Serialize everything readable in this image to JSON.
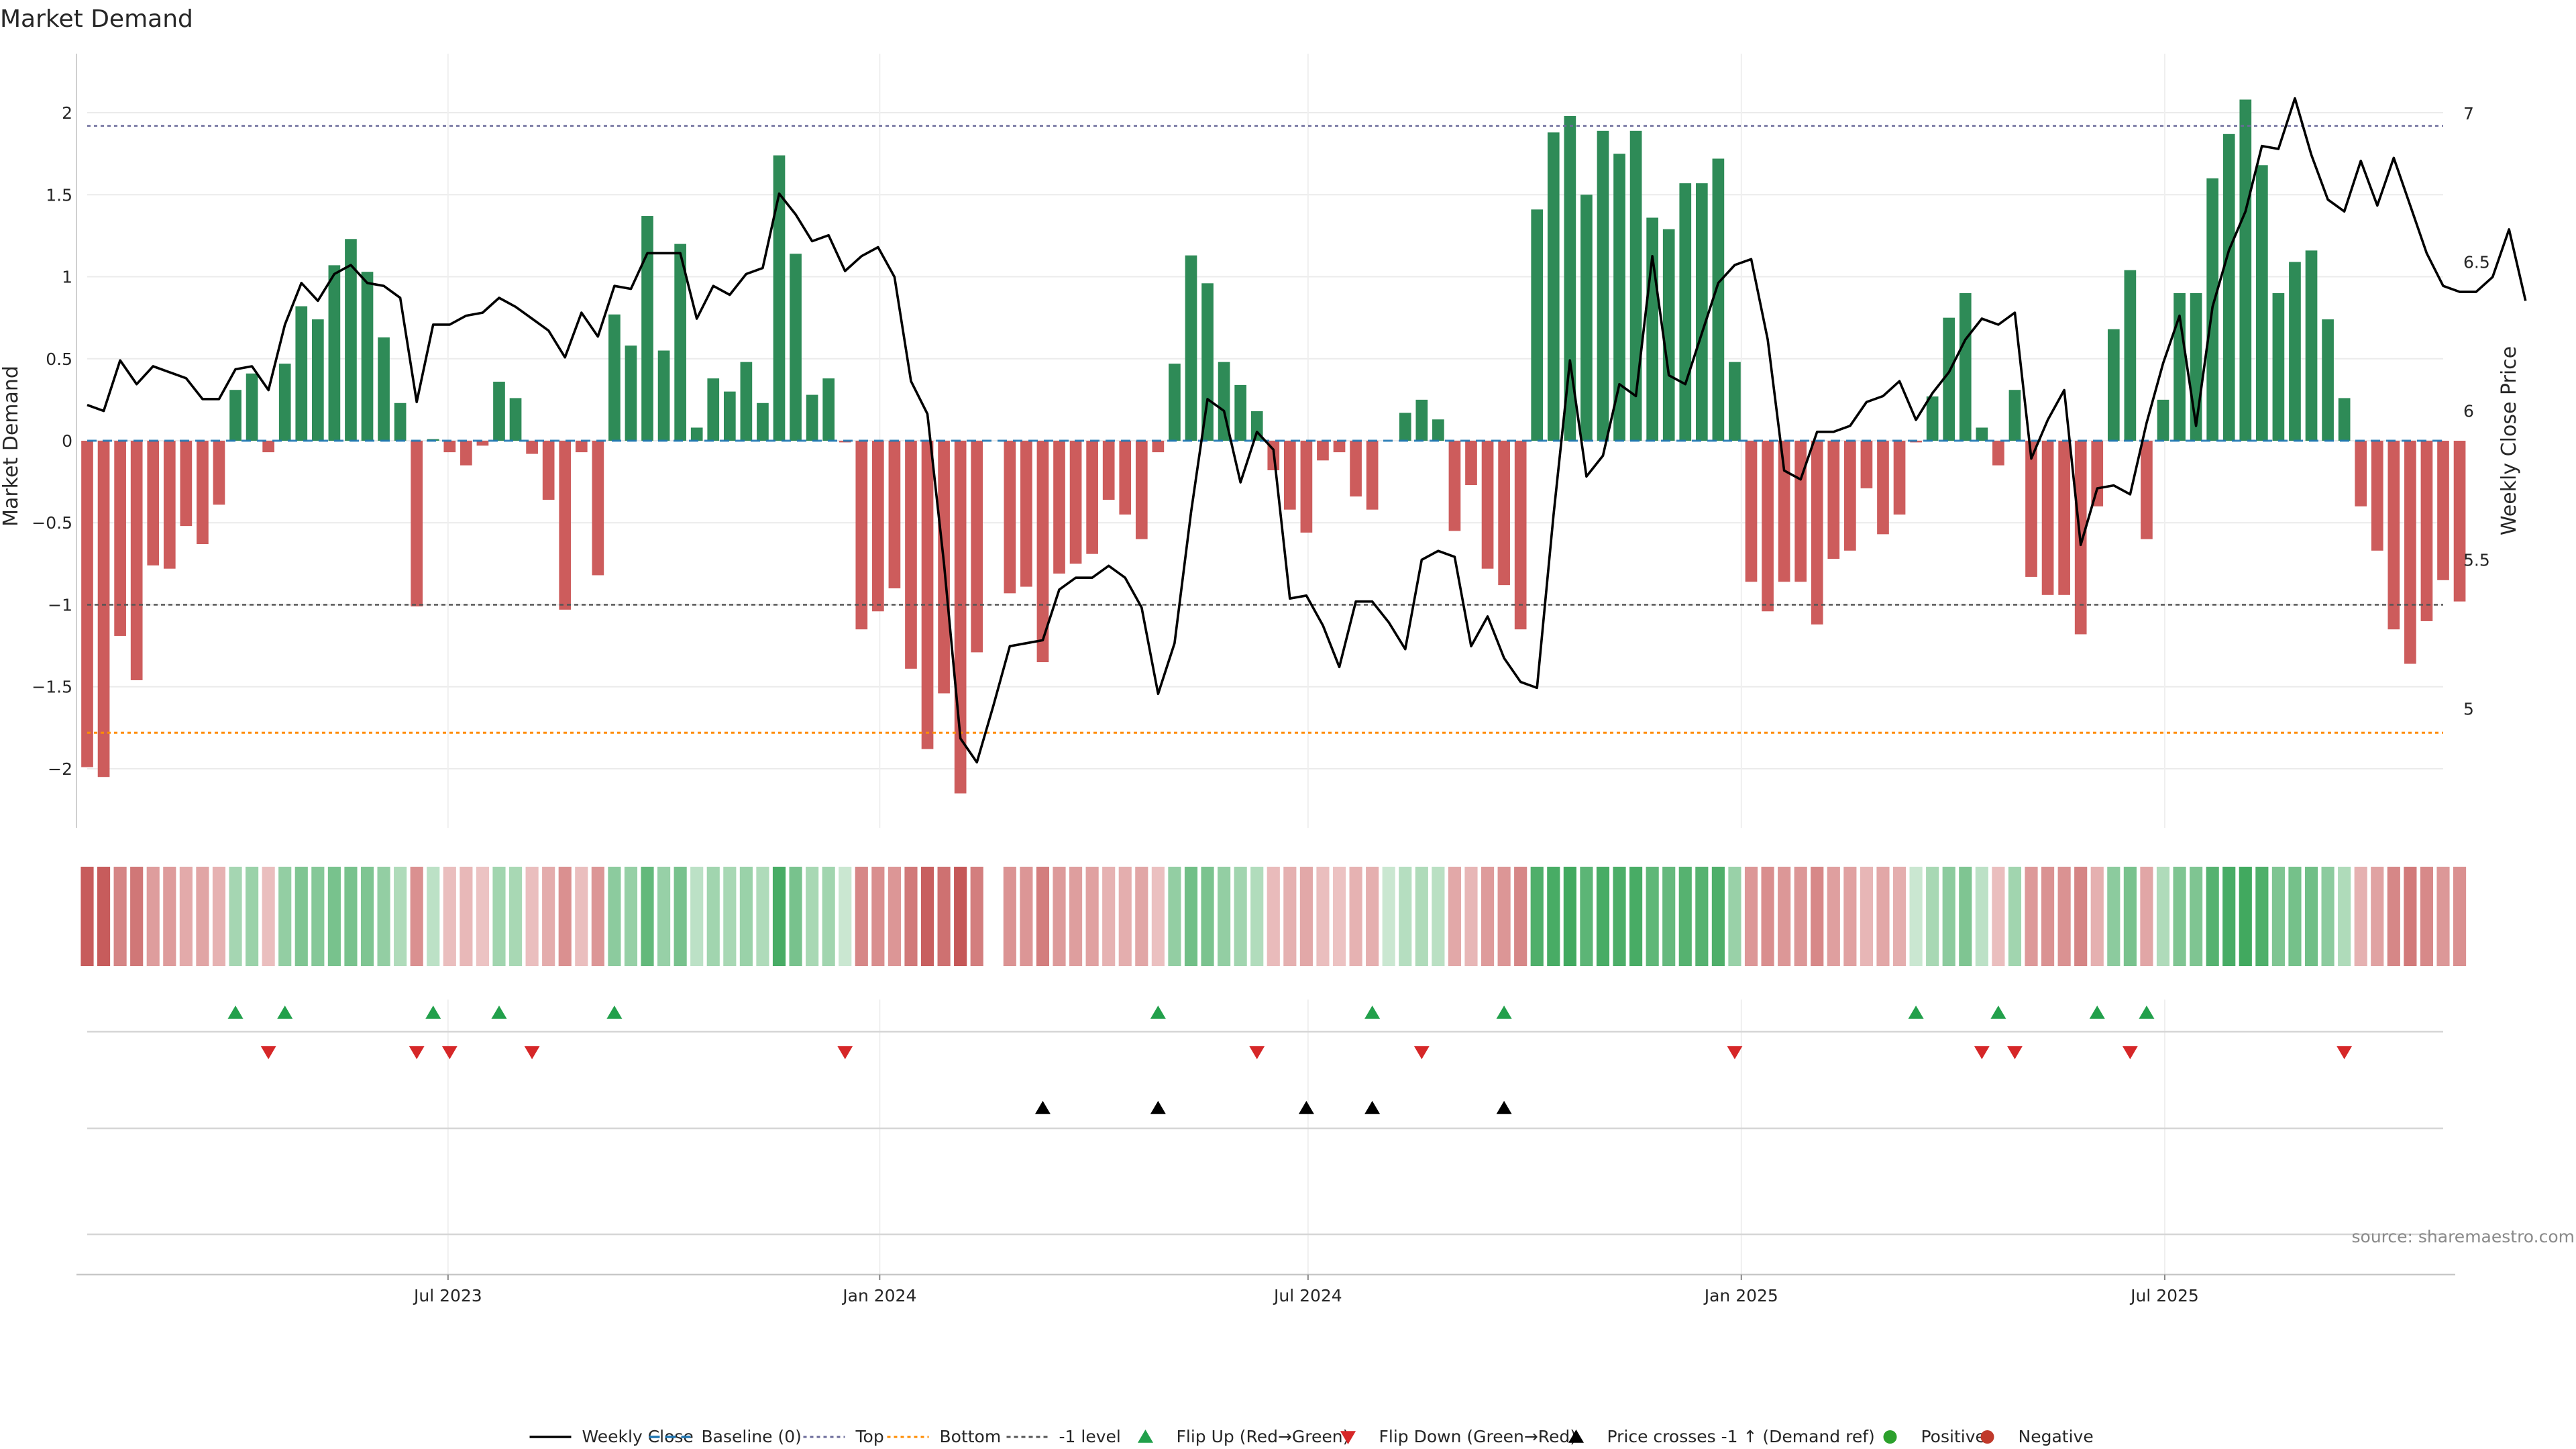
{
  "chart_data": {
    "type": "bar",
    "title": "Market Demand",
    "ylabel": "Market Demand",
    "y2label": "Weekly Close Price",
    "ylim": [
      -2.36,
      2.36
    ],
    "y2lim": [
      4.6,
      7.2
    ],
    "yticks": [
      -2,
      -1.5,
      -1,
      -0.5,
      0,
      0.5,
      1,
      1.5,
      2
    ],
    "ytick_labels": [
      "−2",
      "−1.5",
      "−1",
      "−0.5",
      "0",
      "0.5",
      "1",
      "1.5",
      "2"
    ],
    "y2ticks": [
      5,
      5.5,
      6,
      6.5,
      7
    ],
    "y2tick_labels": [
      "5",
      "5.5",
      "6",
      "6.5",
      "7"
    ],
    "xlim_week": [
      0,
      143
    ],
    "xticks": [
      {
        "week": 21.9,
        "label": "Jul 2023"
      },
      {
        "week": 48.1,
        "label": "Jan 2024"
      },
      {
        "week": 74.1,
        "label": "Jul 2024"
      },
      {
        "week": 100.4,
        "label": "Jan 2025"
      },
      {
        "week": 126.1,
        "label": "Jul 2025"
      }
    ],
    "levels": {
      "top": 1.92,
      "bottom": -1.78,
      "minus_one": -1,
      "baseline": 0
    },
    "demand": [
      -1.99,
      -2.05,
      -1.19,
      -1.46,
      -0.76,
      -0.78,
      -0.52,
      -0.63,
      -0.39,
      0.31,
      0.41,
      -0.07,
      0.47,
      0.82,
      0.74,
      1.07,
      1.23,
      1.03,
      0.63,
      0.23,
      -1.01,
      0.01,
      -0.07,
      -0.15,
      -0.03,
      0.36,
      0.26,
      -0.08,
      -0.36,
      -1.03,
      -0.07,
      -0.82,
      0.77,
      0.58,
      1.37,
      0.55,
      1.2,
      0.08,
      0.38,
      0.3,
      0.48,
      0.23,
      1.74,
      1.14,
      0.28,
      0.38,
      -0.01,
      -1.15,
      -1.04,
      -0.9,
      -1.39,
      -1.88,
      -1.54,
      -2.15,
      -1.29,
      0,
      -0.93,
      -0.89,
      -1.35,
      -0.81,
      -0.75,
      -0.69,
      -0.36,
      -0.45,
      -0.6,
      -0.07,
      0.47,
      1.13,
      0.96,
      0.48,
      0.34,
      0.18,
      -0.18,
      -0.42,
      -0.56,
      -0.12,
      -0.07,
      -0.34,
      -0.42,
      0,
      0.17,
      0.25,
      0.13,
      -0.55,
      -0.27,
      -0.78,
      -0.88,
      -1.15,
      1.41,
      1.88,
      1.98,
      1.5,
      1.89,
      1.75,
      1.89,
      1.36,
      1.29,
      1.57,
      1.57,
      1.72,
      0.48,
      -0.86,
      -1.04,
      -0.86,
      -0.86,
      -1.12,
      -0.72,
      -0.67,
      -0.29,
      -0.57,
      -0.45,
      -0.01,
      0.27,
      0.75,
      0.9,
      0.08,
      -0.15,
      0.31,
      -0.83,
      -0.94,
      -0.94,
      -1.18,
      -0.4,
      0.68,
      1.04,
      -0.6,
      0.25,
      0.9,
      0.9,
      1.6,
      1.87,
      2.08,
      1.68,
      0.9,
      1.09,
      1.16,
      0.74,
      0.26,
      -0.4,
      -0.67,
      -1.15,
      -1.36,
      -1.1,
      -0.85,
      -0.98
    ],
    "weekly_close": [
      6.02,
      6.0,
      6.17,
      6.09,
      6.15,
      6.13,
      6.11,
      6.04,
      6.04,
      6.14,
      6.15,
      6.07,
      6.29,
      6.43,
      6.37,
      6.46,
      6.49,
      6.43,
      6.42,
      6.38,
      6.03,
      6.29,
      6.29,
      6.32,
      6.33,
      6.38,
      6.35,
      6.31,
      6.27,
      6.18,
      6.33,
      6.25,
      6.42,
      6.41,
      6.53,
      6.53,
      6.53,
      6.31,
      6.42,
      6.39,
      6.46,
      6.48,
      6.73,
      6.66,
      6.57,
      6.59,
      6.47,
      6.52,
      6.55,
      6.45,
      6.1,
      5.99,
      5.49,
      4.9,
      4.82,
      5.01,
      5.21,
      5.22,
      5.23,
      5.4,
      5.44,
      5.44,
      5.48,
      5.44,
      5.34,
      5.05,
      5.22,
      5.66,
      6.04,
      6.0,
      5.76,
      5.93,
      5.87,
      5.37,
      5.38,
      5.28,
      5.14,
      5.36,
      5.36,
      5.29,
      5.2,
      5.5,
      5.53,
      5.51,
      5.21,
      5.31,
      5.17,
      5.09,
      5.07,
      5.65,
      6.17,
      5.78,
      5.85,
      6.09,
      6.05,
      6.52,
      6.12,
      6.09,
      6.26,
      6.43,
      6.49,
      6.51,
      6.24,
      5.8,
      5.77,
      5.93,
      5.93,
      5.95,
      6.03,
      6.05,
      6.1,
      5.97,
      6.06,
      6.13,
      6.24,
      6.31,
      6.29,
      6.33,
      5.84,
      5.97,
      6.07,
      5.55,
      5.74,
      5.75,
      5.72,
      5.96,
      6.16,
      6.32,
      5.95,
      6.35,
      6.54,
      6.67,
      6.89,
      6.88,
      7.05,
      6.86,
      6.71,
      6.67,
      6.84,
      6.69,
      6.85,
      6.69,
      6.53,
      6.42,
      6.4,
      6.4,
      6.45,
      6.61,
      6.37
    ],
    "strip_shade": [
      -0.96,
      -0.96,
      -0.6,
      -0.72,
      -0.39,
      -0.4,
      -0.27,
      -0.32,
      -0.2,
      0.27,
      0.35,
      -0.1,
      0.4,
      0.55,
      0.5,
      0.6,
      0.6,
      0.55,
      0.4,
      0.2,
      -0.5,
      0.1,
      -0.1,
      -0.15,
      -0.05,
      0.3,
      0.25,
      -0.1,
      -0.25,
      -0.5,
      -0.1,
      -0.45,
      0.45,
      0.38,
      0.75,
      0.37,
      0.6,
      0.1,
      0.3,
      0.25,
      0.35,
      0.2,
      0.95,
      0.6,
      0.25,
      0.3,
      0,
      -0.58,
      -0.52,
      -0.45,
      -0.7,
      -0.93,
      -0.77,
      -1,
      -0.66,
      0,
      -0.47,
      -0.45,
      -0.66,
      -0.41,
      -0.38,
      -0.35,
      -0.2,
      -0.24,
      -0.31,
      -0.08,
      0.4,
      0.65,
      0.58,
      0.4,
      0.3,
      0.18,
      -0.12,
      -0.22,
      -0.29,
      -0.1,
      -0.06,
      -0.2,
      -0.23,
      0,
      0.15,
      0.2,
      0.12,
      -0.29,
      -0.17,
      -0.4,
      -0.45,
      -0.58,
      0.9,
      0.95,
      1,
      0.8,
      0.95,
      0.92,
      0.95,
      0.78,
      0.74,
      0.85,
      0.85,
      0.9,
      0.36,
      -0.44,
      -0.52,
      -0.44,
      -0.44,
      -0.57,
      -0.37,
      -0.35,
      -0.17,
      -0.3,
      -0.24,
      0,
      0.25,
      0.45,
      0.55,
      0.1,
      -0.1,
      0.3,
      -0.42,
      -0.48,
      -0.48,
      -0.6,
      -0.22,
      0.45,
      0.6,
      -0.31,
      0.2,
      0.55,
      0.55,
      0.85,
      0.95,
      1,
      0.9,
      0.55,
      0.62,
      0.65,
      0.45,
      0.2,
      -0.21,
      -0.34,
      -0.58,
      -0.69,
      -0.56,
      -0.43,
      -0.5
    ],
    "strip_gap_weeks": [
      55
    ],
    "flip_up_weeks": [
      9,
      12,
      21,
      25,
      32,
      65,
      78,
      86,
      111,
      116,
      122,
      125
    ],
    "flip_down_weeks": [
      11,
      20,
      22,
      27,
      46,
      71,
      81,
      100,
      115,
      117,
      124,
      137
    ],
    "price_cross_weeks": [
      58,
      65,
      74,
      78,
      86
    ],
    "legend": [
      {
        "key": "weekly_close",
        "label": "Weekly Close"
      },
      {
        "key": "baseline",
        "label": "Baseline (0)"
      },
      {
        "key": "top",
        "label": "Top"
      },
      {
        "key": "bottom",
        "label": "Bottom"
      },
      {
        "key": "minus_one",
        "label": "-1 level"
      },
      {
        "key": "flip_up",
        "label": "Flip Up (Red→Green)"
      },
      {
        "key": "flip_down",
        "label": "Flip Down (Green→Red)"
      },
      {
        "key": "price_cross",
        "label": "Price crosses -1 ↑ (Demand ref)"
      },
      {
        "key": "positive",
        "label": "Positive"
      },
      {
        "key": "negative",
        "label": "Negative"
      }
    ],
    "legend_position": "bottom-center",
    "source": "source: sharemaestro.com",
    "colors": {
      "positive_bar": "#2e8b57",
      "negative_bar": "#cd5c5c",
      "price_line": "#000000",
      "baseline": "#1f77b4",
      "top_line": "#6b6b9a",
      "bottom_line": "#ff8c00",
      "minus_one_line": "#555555",
      "flip_up": "#22a04b",
      "flip_down": "#d62728",
      "price_cross": "#000000",
      "positive_dot": "#2ca02c",
      "negative_dot": "#c0392b"
    }
  }
}
